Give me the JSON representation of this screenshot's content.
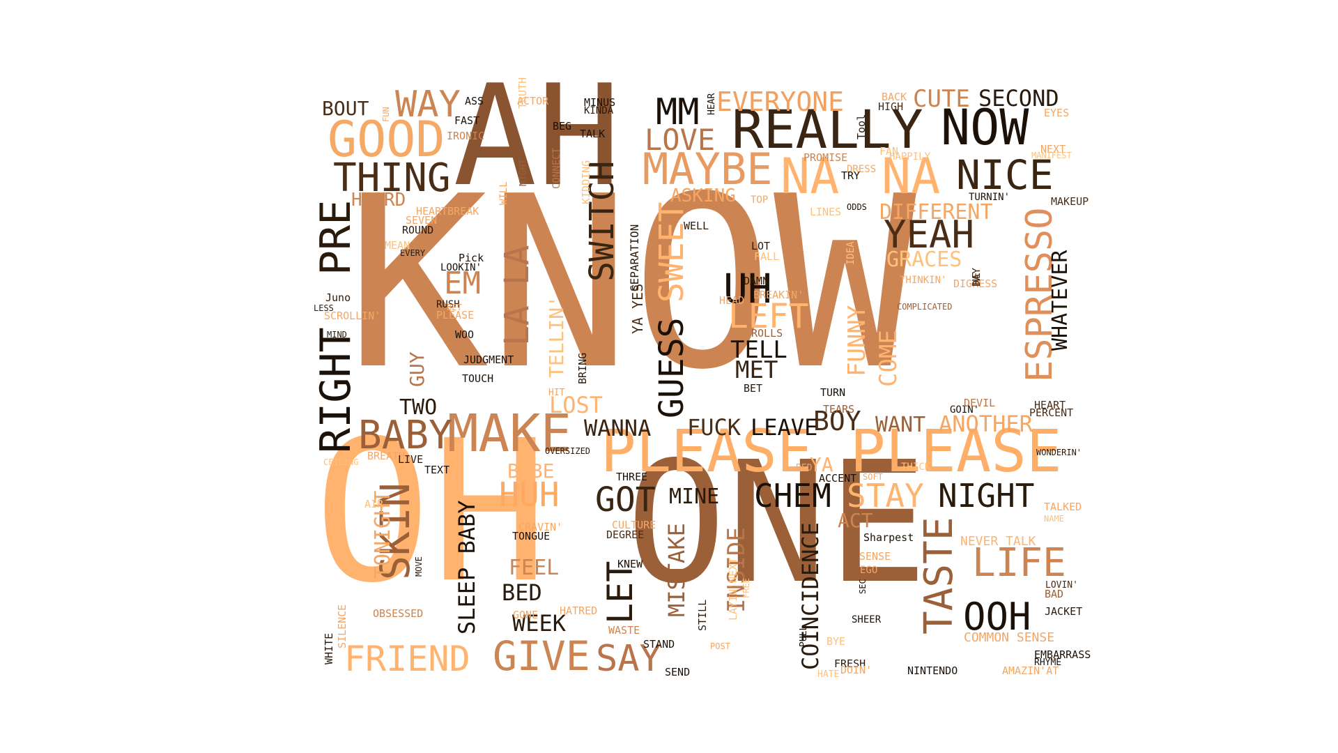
{
  "palette": {
    "dark": "#1b1108",
    "brown": "#4a2d16",
    "mid": "#8c5a34",
    "tan": "#cc8452",
    "light": "#f4a765",
    "pale": "#ffc07a"
  },
  "words": [
    {
      "text": "KNOW",
      "color": "#cc8452"
    },
    {
      "text": "OH",
      "color": "#ffb36e"
    },
    {
      "text": "ONE",
      "color": "#9c6038"
    },
    {
      "text": "AH",
      "color": "#8a5430"
    },
    {
      "text": "PLEASE",
      "color": "#ffae68"
    },
    {
      "text": "PLEASE",
      "color": "#ffae68"
    },
    {
      "text": "REALLY",
      "color": "#3a2513"
    },
    {
      "text": "NOW",
      "color": "#1b1108"
    },
    {
      "text": "GOOD",
      "color": "#f6a865"
    },
    {
      "text": "MAKE",
      "color": "#cc8452"
    },
    {
      "text": "NA",
      "color": "#ffb36e"
    },
    {
      "text": "NA",
      "color": "#ffb36e"
    },
    {
      "text": "RIGHT",
      "color": "#1b1108"
    },
    {
      "text": "PRE",
      "color": "#2a1a0c"
    },
    {
      "text": "ESPRESSO",
      "color": "#e08f58"
    },
    {
      "text": "MAYBE",
      "color": "#e89b60"
    },
    {
      "text": "NICE",
      "color": "#3a2513"
    },
    {
      "text": "YEAH",
      "color": "#4a2d16"
    },
    {
      "text": "UH",
      "color": "#1b1108"
    },
    {
      "text": "GUESS",
      "color": "#1b1108"
    },
    {
      "text": "OOH",
      "color": "#1b1108"
    },
    {
      "text": "SKIN",
      "color": "#9c6038"
    },
    {
      "text": "GIVE",
      "color": "#cc8452"
    },
    {
      "text": "BABY",
      "color": "#9c6038"
    },
    {
      "text": "FRIEND",
      "color": "#ffb36e"
    },
    {
      "text": "HUH",
      "color": "#ffa860"
    },
    {
      "text": "GOT",
      "color": "#3a2513"
    },
    {
      "text": "CHEM",
      "color": "#1b1108"
    },
    {
      "text": "STAY",
      "color": "#ffb36e"
    },
    {
      "text": "NIGHT",
      "color": "#2a1a0c"
    },
    {
      "text": "LIFE",
      "color": "#cc8452"
    },
    {
      "text": "TASTE",
      "color": "#9c6038"
    },
    {
      "text": "SAY",
      "color": "#b8744a"
    },
    {
      "text": "LET",
      "color": "#2a1a0c"
    },
    {
      "text": "THING",
      "color": "#4a2d16"
    },
    {
      "text": "WAY",
      "color": "#cc8452"
    },
    {
      "text": "MM",
      "color": "#1b1108"
    },
    {
      "text": "LOVE",
      "color": "#b8744a"
    },
    {
      "text": "EVERYONE",
      "color": "#f0a060"
    },
    {
      "text": "CUTE",
      "color": "#cc8452"
    },
    {
      "text": "SECOND",
      "color": "#2a1a0c"
    },
    {
      "text": "SWITCH",
      "color": "#3a2513"
    },
    {
      "text": "SWEET",
      "color": "#ffb36e"
    },
    {
      "text": "LA LA",
      "color": "#b8744a"
    },
    {
      "text": "EM",
      "color": "#cc8452"
    },
    {
      "text": "LEFT",
      "color": "#ffb36e"
    },
    {
      "text": "TELL",
      "color": "#1b1108"
    },
    {
      "text": "MET",
      "color": "#3a2513"
    },
    {
      "text": "FUNNY",
      "color": "#ffb36e"
    },
    {
      "text": "COME",
      "color": "#ffb36e"
    },
    {
      "text": "GRACES",
      "color": "#ffc07a"
    },
    {
      "text": "DIFFERENT",
      "color": "#f4a765"
    },
    {
      "text": "WHATEVER",
      "color": "#1b1108"
    },
    {
      "text": "ANOTHER",
      "color": "#f4a765"
    },
    {
      "text": "WANT",
      "color": "#9c6038"
    },
    {
      "text": "BOY",
      "color": "#4a2d16"
    },
    {
      "text": "LEAVE",
      "color": "#1b1108"
    },
    {
      "text": "FUCK",
      "color": "#4a2d16"
    },
    {
      "text": "WANNA",
      "color": "#3a2513"
    },
    {
      "text": "LOST",
      "color": "#ffb36e"
    },
    {
      "text": "TWO",
      "color": "#2a1a0c"
    },
    {
      "text": "GUY",
      "color": "#b8744a"
    },
    {
      "text": "SLEEP BABY",
      "color": "#1b1108"
    },
    {
      "text": "TONIGHT",
      "color": "#f4a765"
    },
    {
      "text": "FEEL",
      "color": "#cc8452"
    },
    {
      "text": "BED",
      "color": "#2a1a0c"
    },
    {
      "text": "WEEK",
      "color": "#2a1a0c"
    },
    {
      "text": "MISTAKE",
      "color": "#9c6038"
    },
    {
      "text": "MINE",
      "color": "#2a1a0c"
    },
    {
      "text": "INSIDE",
      "color": "#b8744a"
    },
    {
      "text": "COINCIDENCE",
      "color": "#2a1a0c"
    },
    {
      "text": "ACT",
      "color": "#cc8452"
    },
    {
      "text": "BOUT",
      "color": "#4a2d16"
    },
    {
      "text": "HEARD",
      "color": "#cc8452"
    },
    {
      "text": "ASKING",
      "color": "#f4a765"
    },
    {
      "text": "BABE",
      "color": "#ffb36e"
    },
    {
      "text": "YA",
      "color": "#ffb36e"
    },
    {
      "text": "YA YES",
      "color": "#4a2d16"
    },
    {
      "text": "TELLIN'",
      "color": "#ffc07a"
    },
    {
      "text": "NEVER TALK",
      "color": "#ffb36e"
    },
    {
      "text": "COMMON SENSE",
      "color": "#f4a765"
    },
    {
      "text": "SEPARATION",
      "color": "#2a1a0c"
    },
    {
      "text": "TURNIN'",
      "color": "#1b1108"
    },
    {
      "text": "FAST",
      "color": "#1b1108"
    },
    {
      "text": "ASS",
      "color": "#1b1108"
    },
    {
      "text": "ACTOR",
      "color": "#f4a765"
    },
    {
      "text": "MINUS",
      "color": "#1b1108"
    },
    {
      "text": "KINDA",
      "color": "#2a1a0c"
    },
    {
      "text": "HEAR",
      "color": "#1b1108"
    },
    {
      "text": "BACK",
      "color": "#f4a765"
    },
    {
      "text": "HIGH",
      "color": "#4a2d16"
    },
    {
      "text": "EYES",
      "color": "#f4a765"
    },
    {
      "text": "NEXT",
      "color": "#f4a765"
    },
    {
      "text": "MANIFEST",
      "color": "#ffc07a"
    },
    {
      "text": "MAKEUP",
      "color": "#4a2d16"
    },
    {
      "text": "HAPPILY",
      "color": "#ffc07a"
    },
    {
      "text": "DRESS",
      "color": "#f4a765"
    },
    {
      "text": "PROMISE",
      "color": "#cc8452"
    },
    {
      "text": "TRY",
      "color": "#1b1108"
    },
    {
      "text": "TOP",
      "color": "#f4a765"
    },
    {
      "text": "LINES",
      "color": "#ffc07a"
    },
    {
      "text": "ODDS",
      "color": "#1b1108"
    },
    {
      "text": "FAN",
      "color": "#ffc07a"
    },
    {
      "text": "Tool",
      "color": "#2a1a0c"
    },
    {
      "text": "TRUTH",
      "color": "#ffc07a"
    },
    {
      "text": "BEG",
      "color": "#1b1108"
    },
    {
      "text": "TALK",
      "color": "#1b1108"
    },
    {
      "text": "IRONIC",
      "color": "#cc8452"
    },
    {
      "text": "FUN",
      "color": "#f4a765"
    },
    {
      "text": "CONNECT",
      "color": "#b8744a"
    },
    {
      "text": "WILL",
      "color": "#f4a765"
    },
    {
      "text": "MIGHT",
      "color": "#9c6038"
    },
    {
      "text": "KIDDING",
      "color": "#ffc07a"
    },
    {
      "text": "HEARTBREAK",
      "color": "#f4a765"
    },
    {
      "text": "SEVEN",
      "color": "#f4a765"
    },
    {
      "text": "ROUND",
      "color": "#2a1a0c"
    },
    {
      "text": "MEAN",
      "color": "#ffc07a"
    },
    {
      "text": "EVERY",
      "color": "#2a1a0c"
    },
    {
      "text": "Pick",
      "color": "#1b1108"
    },
    {
      "text": "LOOKIN'",
      "color": "#1b1108"
    },
    {
      "text": "Juno",
      "color": "#2a1a0c"
    },
    {
      "text": "LESS",
      "color": "#2a1a0c"
    },
    {
      "text": "SCROLLIN'",
      "color": "#f4a765"
    },
    {
      "text": "MIND",
      "color": "#2a1a0c"
    },
    {
      "text": "RUSH",
      "color": "#2a1a0c"
    },
    {
      "text": "PLEASE",
      "color": "#f4a765"
    },
    {
      "text": "BET",
      "color": "#f4a765"
    },
    {
      "text": "WOO",
      "color": "#1b1108"
    },
    {
      "text": "JUDGMENT",
      "color": "#1b1108"
    },
    {
      "text": "TOUCH",
      "color": "#1b1108"
    },
    {
      "text": "BRING",
      "color": "#2a1a0c"
    },
    {
      "text": "HIT",
      "color": "#f4a765"
    },
    {
      "text": "OVERSIZED",
      "color": "#2a1a0c"
    },
    {
      "text": "BREATH",
      "color": "#f4a765"
    },
    {
      "text": "LIVE",
      "color": "#2a1a0c"
    },
    {
      "text": "CEILING",
      "color": "#ffc07a"
    },
    {
      "text": "TEXT",
      "color": "#1b1108"
    },
    {
      "text": "WELL",
      "color": "#2a1a0c"
    },
    {
      "text": "LOT",
      "color": "#2a1a0c"
    },
    {
      "text": "FALL",
      "color": "#ffc07a"
    },
    {
      "text": "DAMN",
      "color": "#2a1a0c"
    },
    {
      "text": "HEAD",
      "color": "#f4a765"
    },
    {
      "text": "BREAKIN'",
      "color": "#f4a765"
    },
    {
      "text": "ROLLS",
      "color": "#9c6038"
    },
    {
      "text": "BET",
      "color": "#2a1a0c"
    },
    {
      "text": "TURN",
      "color": "#1b1108"
    },
    {
      "text": "TEARS",
      "color": "#9c6038"
    },
    {
      "text": "IDEA",
      "color": "#ffc07a"
    },
    {
      "text": "THINKIN'",
      "color": "#f4a765"
    },
    {
      "text": "COMPLICATED",
      "color": "#9c6038"
    },
    {
      "text": "DIGRESS",
      "color": "#f4a765"
    },
    {
      "text": "DAY",
      "color": "#4a2d16"
    },
    {
      "text": "HE",
      "color": "#4a2d16"
    },
    {
      "text": "GOIN'",
      "color": "#1b1108"
    },
    {
      "text": "DEVIL",
      "color": "#b8744a"
    },
    {
      "text": "HEART",
      "color": "#4a2d16"
    },
    {
      "text": "PERCENT",
      "color": "#4a2d16"
    },
    {
      "text": "WONDERIN'",
      "color": "#2a1a0c"
    },
    {
      "text": "BED",
      "color": "#f4a765"
    },
    {
      "text": "ACCENT",
      "color": "#1b1108"
    },
    {
      "text": "SOFT",
      "color": "#f4a765"
    },
    {
      "text": "THICK",
      "color": "#ffc07a"
    },
    {
      "text": "THREE",
      "color": "#1b1108"
    },
    {
      "text": "AIR",
      "color": "#ffc07a"
    },
    {
      "text": "CRAVIN'",
      "color": "#f4a765"
    },
    {
      "text": "TONGUE",
      "color": "#1b1108"
    },
    {
      "text": "CULTURE",
      "color": "#f4a765"
    },
    {
      "text": "DEGREE",
      "color": "#4a2d16"
    },
    {
      "text": "KNEW",
      "color": "#1b1108"
    },
    {
      "text": "MOVE",
      "color": "#2a1a0c"
    },
    {
      "text": "OBSESSED",
      "color": "#cc8452"
    },
    {
      "text": "GONE",
      "color": "#f4a765"
    },
    {
      "text": "HATRED",
      "color": "#f4a765"
    },
    {
      "text": "WASTE",
      "color": "#cc8452"
    },
    {
      "text": "STAND",
      "color": "#1b1108"
    },
    {
      "text": "SEND",
      "color": "#1b1108"
    },
    {
      "text": "STILL",
      "color": "#2a1a0c"
    },
    {
      "text": "LAYIN'NEXT",
      "color": "#ffc07a"
    },
    {
      "text": "POST",
      "color": "#f4a765"
    },
    {
      "text": "FREE",
      "color": "#ffc07a"
    },
    {
      "text": "Sharpest",
      "color": "#1b1108"
    },
    {
      "text": "SENSE",
      "color": "#f4a765"
    },
    {
      "text": "EGO",
      "color": "#f4a765"
    },
    {
      "text": "SEC",
      "color": "#1b1108"
    },
    {
      "text": "SHEER",
      "color": "#1b1108"
    },
    {
      "text": "PULL",
      "color": "#1b1108"
    },
    {
      "text": "BYE",
      "color": "#ffc07a"
    },
    {
      "text": "FRESH",
      "color": "#2a1a0c"
    },
    {
      "text": "HATE",
      "color": "#ffc07a"
    },
    {
      "text": "DOIN'",
      "color": "#f4a765"
    },
    {
      "text": "NINTENDO",
      "color": "#1b1108"
    },
    {
      "text": "AMAZIN'AT",
      "color": "#f4a765"
    },
    {
      "text": "EMBARRASS",
      "color": "#1b1108"
    },
    {
      "text": "RHYME",
      "color": "#1b1108"
    },
    {
      "text": "JACKET",
      "color": "#2a1a0c"
    },
    {
      "text": "BAD",
      "color": "#9c6038"
    },
    {
      "text": "LOVIN'",
      "color": "#4a2d16"
    },
    {
      "text": "TALKED",
      "color": "#f4a765"
    },
    {
      "text": "NAME",
      "color": "#ffc07a"
    },
    {
      "text": "WHITE",
      "color": "#2a1a0c"
    },
    {
      "text": "SILENCE",
      "color": "#f4a765"
    },
    {
      "text": "PROVE",
      "color": "#f4a765"
    }
  ]
}
